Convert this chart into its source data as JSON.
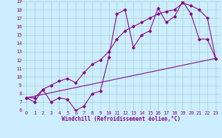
{
  "xlabel": "Windchill (Refroidissement éolien,°C)",
  "bg_color": "#cceeff",
  "grid_color": "#aacccc",
  "line_color": "#880088",
  "xlim": [
    -0.5,
    23.5
  ],
  "ylim": [
    6,
    19
  ],
  "xticks": [
    0,
    1,
    2,
    3,
    4,
    5,
    6,
    7,
    8,
    9,
    10,
    11,
    12,
    13,
    14,
    15,
    16,
    17,
    18,
    19,
    20,
    21,
    22,
    23
  ],
  "yticks": [
    6,
    7,
    8,
    9,
    10,
    11,
    12,
    13,
    14,
    15,
    16,
    17,
    18,
    19
  ],
  "line1_x": [
    0,
    1,
    2,
    3,
    4,
    5,
    6,
    7,
    8,
    9,
    10,
    11,
    12,
    13,
    14,
    15,
    16,
    17,
    18,
    19,
    20,
    21,
    22,
    23
  ],
  "line1_y": [
    7.5,
    7.0,
    8.5,
    7.0,
    7.5,
    7.3,
    6.0,
    6.5,
    8.0,
    8.3,
    12.3,
    17.5,
    18.0,
    13.5,
    15.0,
    15.5,
    18.2,
    16.5,
    17.2,
    19.0,
    17.5,
    14.5,
    14.5,
    12.2
  ],
  "line2_x": [
    0,
    1,
    2,
    3,
    4,
    5,
    6,
    7,
    8,
    9,
    10,
    11,
    12,
    13,
    14,
    15,
    16,
    17,
    18,
    19,
    20,
    21,
    22,
    23
  ],
  "line2_y": [
    7.5,
    7.5,
    8.5,
    9.0,
    9.5,
    9.8,
    9.3,
    10.5,
    11.5,
    12.0,
    13.0,
    14.5,
    15.5,
    16.0,
    16.5,
    17.0,
    17.5,
    17.8,
    18.0,
    18.8,
    18.5,
    18.0,
    17.0,
    12.2
  ],
  "line3_x": [
    0,
    23
  ],
  "line3_y": [
    7.5,
    12.2
  ],
  "tick_fontsize": 5,
  "xlabel_fontsize": 5.5
}
